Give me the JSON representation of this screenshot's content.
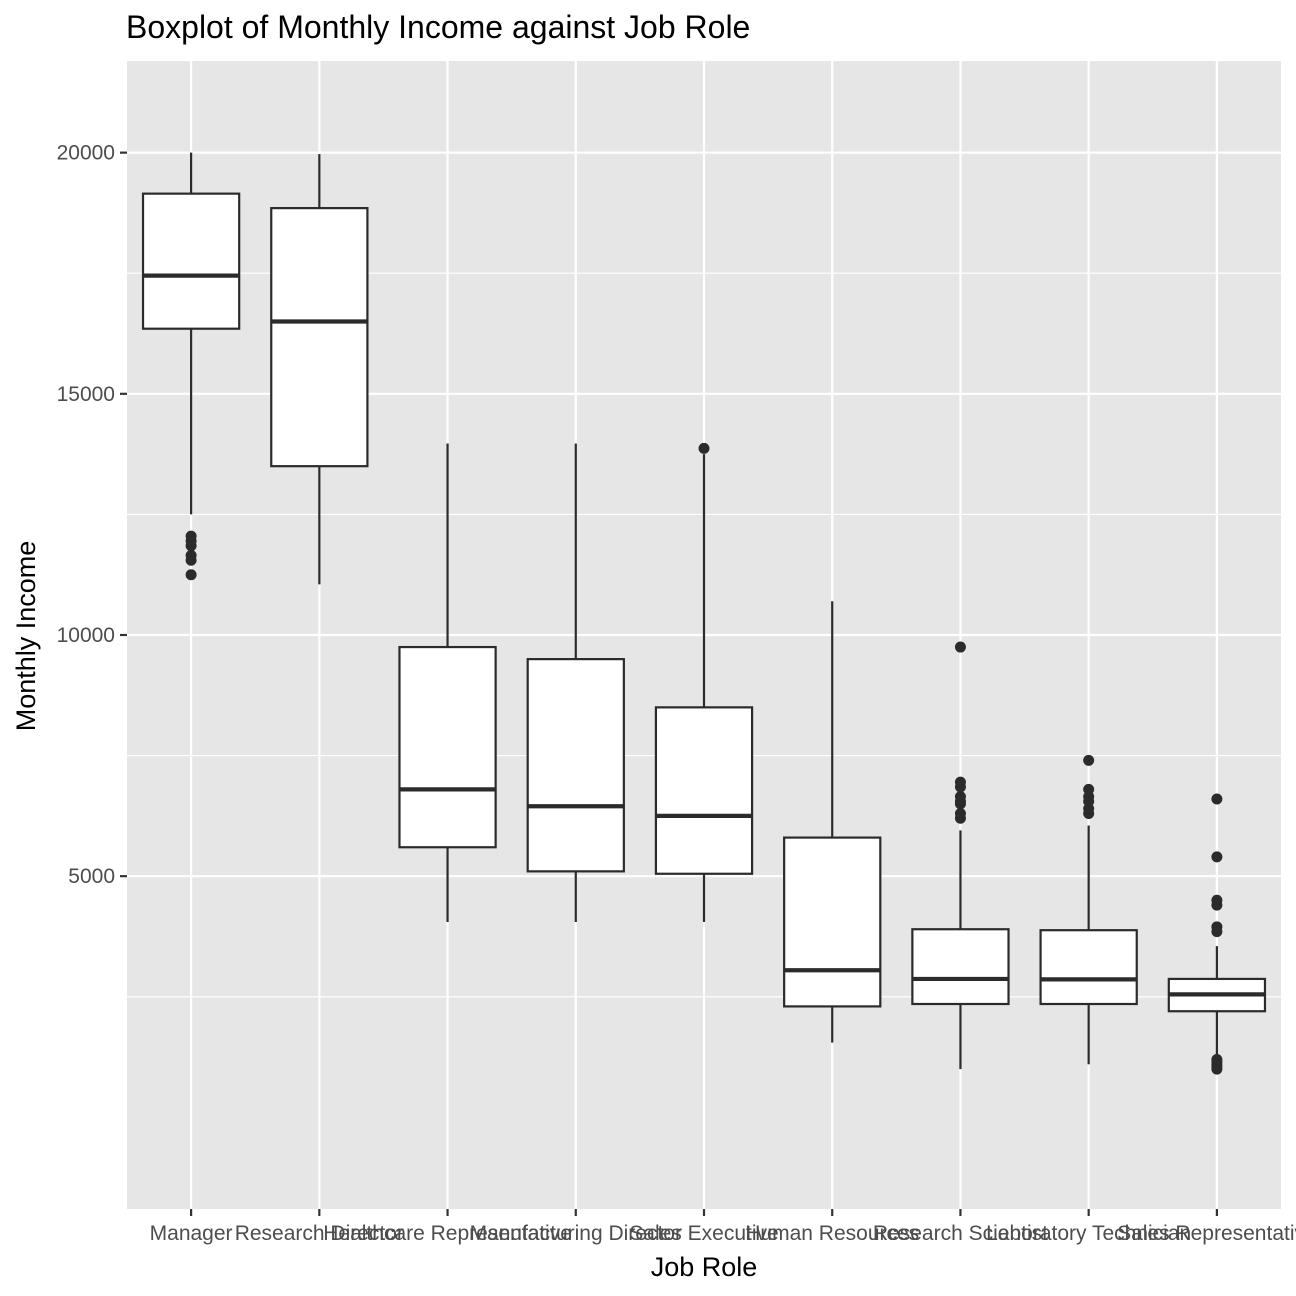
{
  "chart_data": {
    "type": "boxplot",
    "title": "Boxplot of Monthly Income against Job Role",
    "xlabel": "Job Role",
    "ylabel": "Monthly Income",
    "ylim": [
      -1900,
      21900
    ],
    "yticks": [
      5000,
      10000,
      15000,
      20000
    ],
    "y_minor_ticks": [
      2500,
      7500,
      12500,
      17500
    ],
    "grid": true,
    "legend": "none",
    "colors": {
      "panel": "#e6e6e6",
      "grid": "#ffffff",
      "box_fill": "#ffffff",
      "box_stroke": "#2b2b2b",
      "outlier": "#2b2b2b",
      "tick_label": "#4d4d4d"
    },
    "categories": [
      "Manager",
      "Research Director",
      "Healthcare Representative",
      "Manufacturing Director",
      "Sales Executive",
      "Human Resources",
      "Research Scientist",
      "Laboratory Technician",
      "Sales Representative"
    ],
    "boxes": [
      {
        "category": "Manager",
        "min": 12500,
        "q1": 16350,
        "median": 17450,
        "q3": 19150,
        "max": 20000,
        "outliers": [
          11250,
          11550,
          11650,
          11850,
          11950,
          12050
        ]
      },
      {
        "category": "Research Director",
        "min": 11050,
        "q1": 13500,
        "median": 16500,
        "q3": 18850,
        "max": 19970,
        "outliers": []
      },
      {
        "category": "Healthcare Representative",
        "min": 4050,
        "q1": 5600,
        "median": 6800,
        "q3": 9750,
        "max": 13970,
        "outliers": []
      },
      {
        "category": "Manufacturing Director",
        "min": 4050,
        "q1": 5100,
        "median": 6450,
        "q3": 9500,
        "max": 13970,
        "outliers": []
      },
      {
        "category": "Sales Executive",
        "min": 4050,
        "q1": 5050,
        "median": 6250,
        "q3": 8500,
        "max": 13750,
        "outliers": [
          13870
        ]
      },
      {
        "category": "Human Resources",
        "min": 1550,
        "q1": 2300,
        "median": 3050,
        "q3": 5800,
        "max": 10700,
        "outliers": []
      },
      {
        "category": "Research Scientist",
        "min": 1000,
        "q1": 2350,
        "median": 2870,
        "q3": 3900,
        "max": 5950,
        "outliers": [
          6200,
          6300,
          6500,
          6550,
          6650,
          6850,
          6950,
          9750
        ]
      },
      {
        "category": "Laboratory Technician",
        "min": 1100,
        "q1": 2350,
        "median": 2860,
        "q3": 3880,
        "max": 6050,
        "outliers": [
          6300,
          6400,
          6550,
          6650,
          6800,
          7400
        ]
      },
      {
        "category": "Sales Representative",
        "min": 1150,
        "q1": 2200,
        "median": 2550,
        "q3": 2870,
        "max": 3550,
        "outliers": [
          1000,
          1050,
          1100,
          1150,
          1200,
          3850,
          3950,
          4400,
          4500,
          5400,
          6600
        ]
      }
    ]
  }
}
